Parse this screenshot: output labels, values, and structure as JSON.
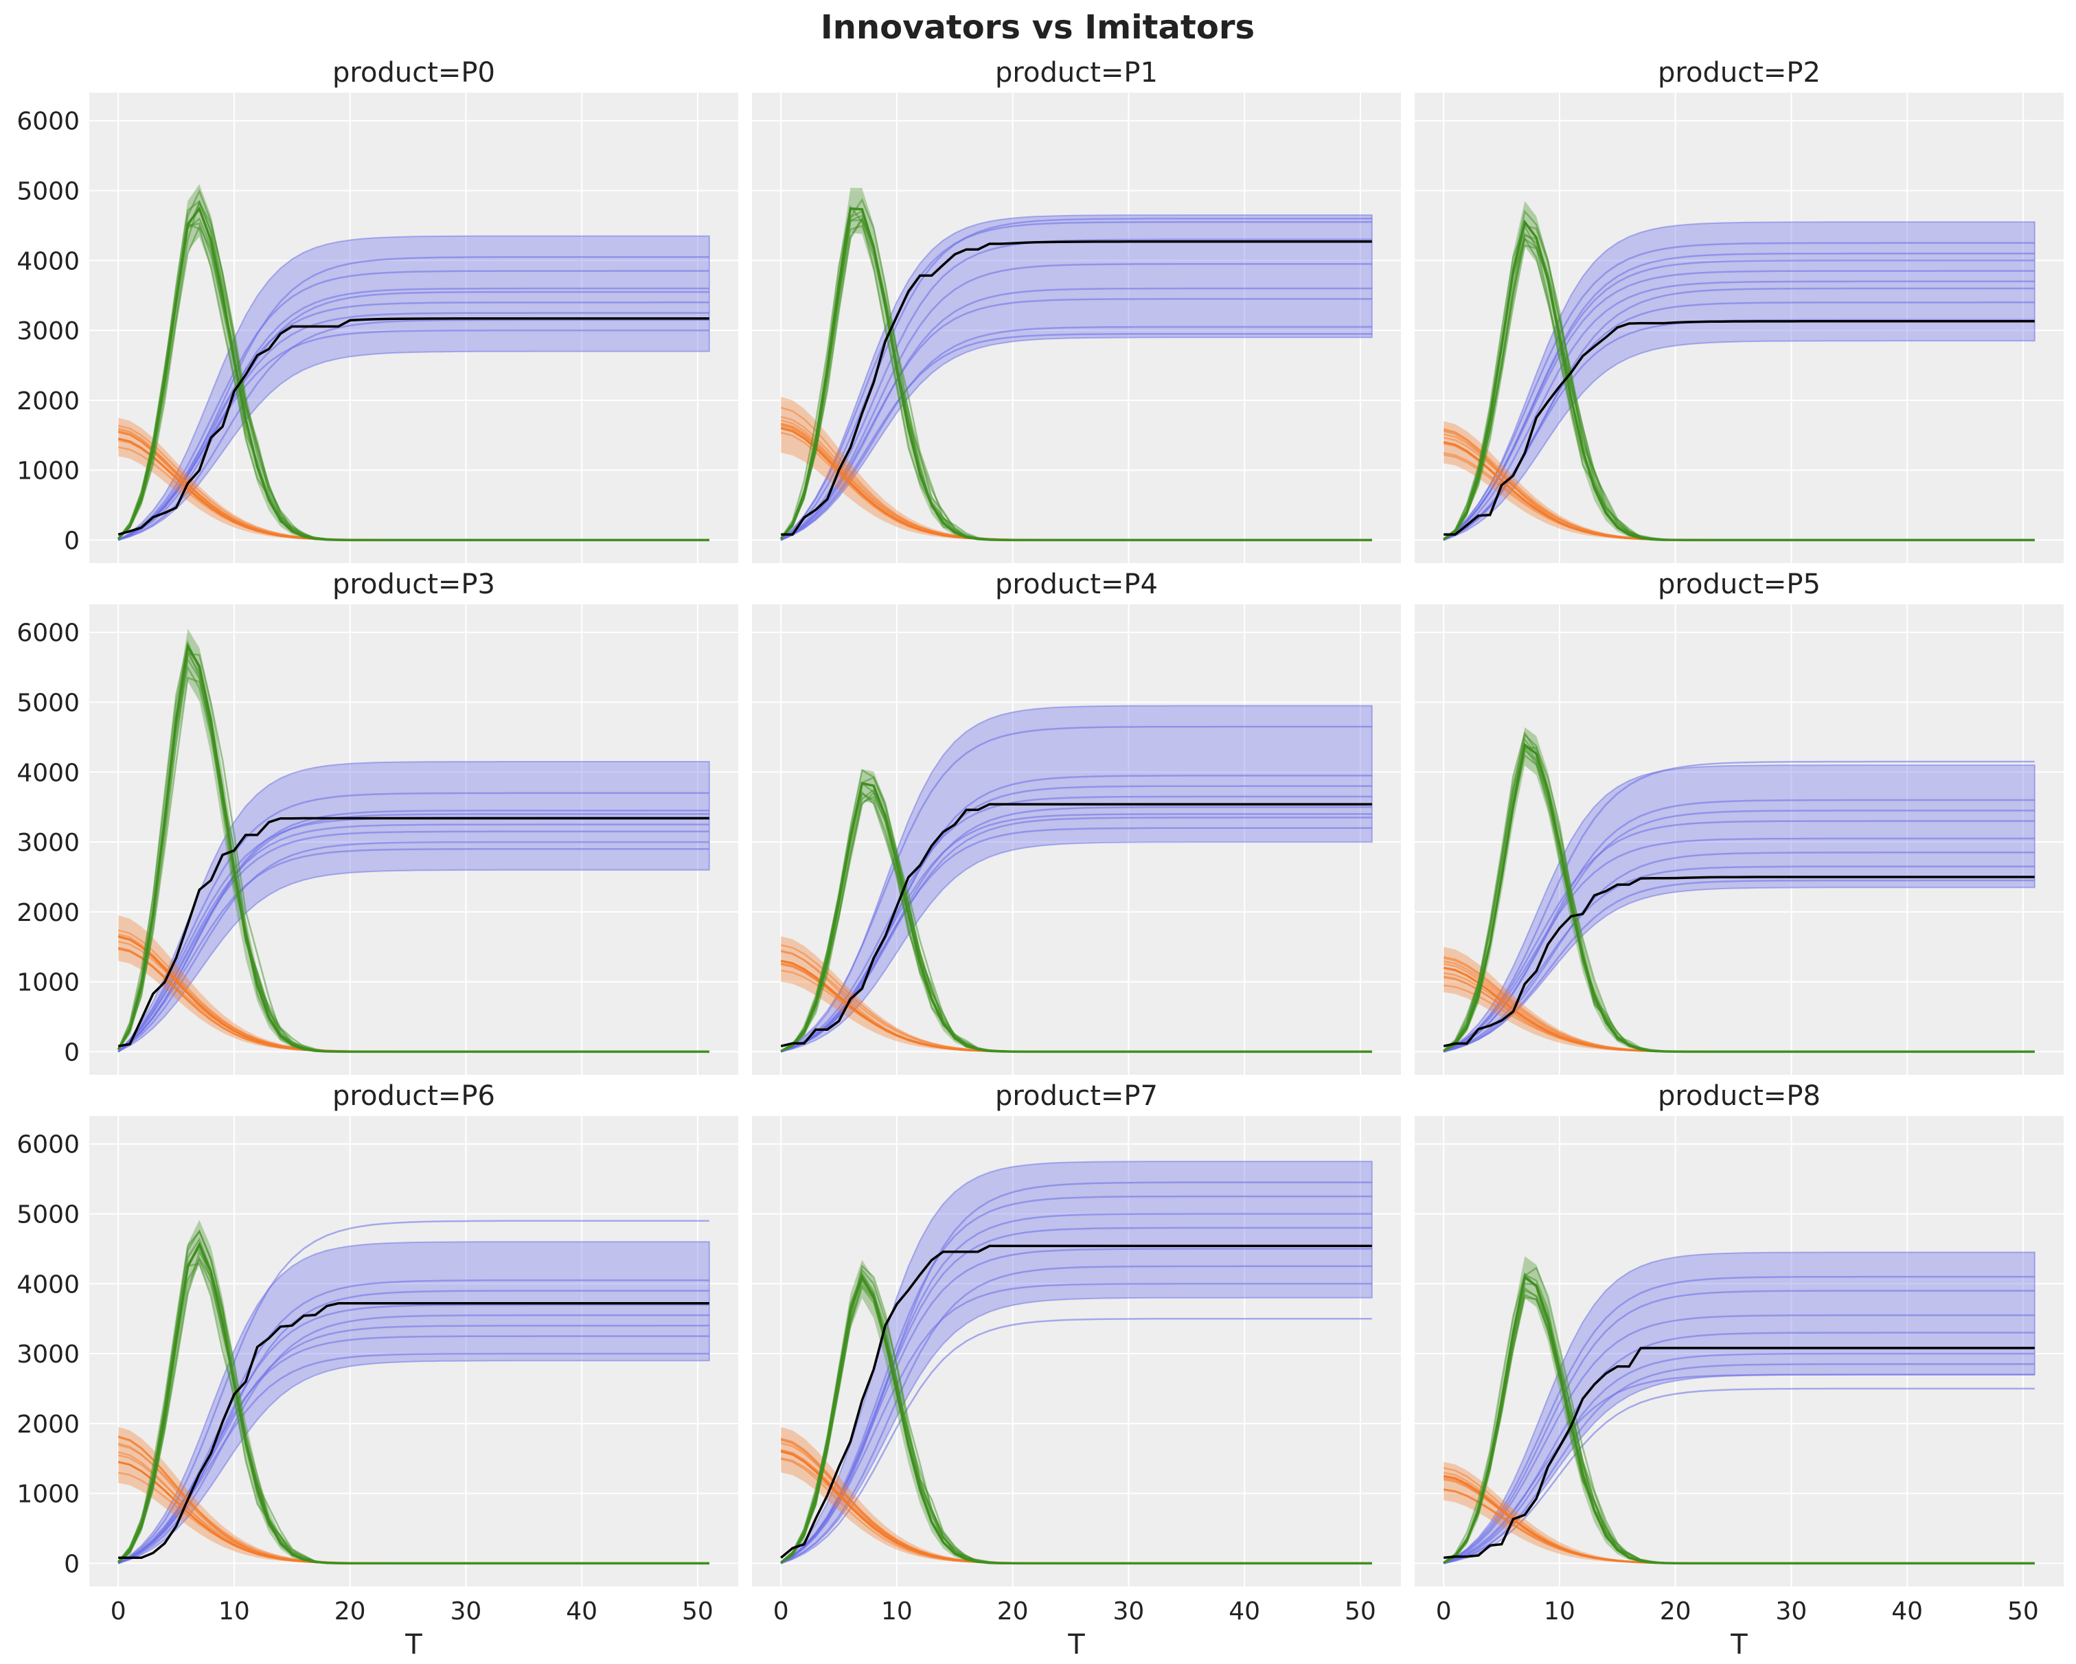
{
  "title": "Innovators vs Imitators",
  "colors": {
    "background": "#eeeeee",
    "grid": "#ffffff",
    "adopters": "#6a6ee8",
    "innovators": "#f47b2a",
    "imitators": "#3f8f1f",
    "observed": "#000000"
  },
  "chart_data": {
    "type": "line",
    "layout": "3x3 grid",
    "xlabel": "T",
    "xlim": [
      0,
      51
    ],
    "ylim": [
      0,
      6300
    ],
    "xticks": [
      0,
      10,
      20,
      30,
      40,
      50
    ],
    "yticks": [
      0,
      1000,
      2000,
      3000,
      4000,
      5000,
      6000
    ],
    "grid": true,
    "panels": [
      {
        "title": "product=P0",
        "observed_plateau": 3170,
        "observed_t50": 8.5,
        "adopters_hdi_plateau": [
          2700,
          4350
        ],
        "adopters_sample_plateaus": [
          3000,
          3150,
          3250,
          3400,
          3550,
          3600,
          3850,
          4050
        ],
        "adopters_t50": 8.5,
        "imitators_peak": 4800,
        "imitators_peak_hdi": [
          4400,
          5150
        ],
        "imitators_peak_t": 6.5,
        "innovators_start": 1450,
        "innovators_start_hdi": [
          1200,
          1750
        ]
      },
      {
        "title": "product=P1",
        "observed_plateau": 4270,
        "observed_t50": 7.5,
        "adopters_hdi_plateau": [
          2900,
          4650
        ],
        "adopters_sample_plateaus": [
          2950,
          3050,
          3450,
          3600,
          3950,
          4300,
          4550,
          4600
        ],
        "adopters_t50": 7.5,
        "imitators_peak": 4850,
        "imitators_peak_hdi": [
          4500,
          5150
        ],
        "imitators_peak_t": 6.3,
        "innovators_start": 1600,
        "innovators_start_hdi": [
          1250,
          2050
        ]
      },
      {
        "title": "product=P2",
        "observed_plateau": 3130,
        "observed_t50": 7.5,
        "adopters_hdi_plateau": [
          2850,
          4550
        ],
        "adopters_sample_plateaus": [
          3150,
          3400,
          3600,
          3700,
          3850,
          4000,
          4100,
          4250
        ],
        "adopters_t50": 8.0,
        "imitators_peak": 4550,
        "imitators_peak_hdi": [
          4200,
          4850
        ],
        "imitators_peak_t": 7.0,
        "innovators_start": 1400,
        "innovators_start_hdi": [
          1100,
          1700
        ]
      },
      {
        "title": "product=P3",
        "observed_plateau": 3340,
        "observed_t50": 5.0,
        "adopters_hdi_plateau": [
          2600,
          4150
        ],
        "adopters_sample_plateaus": [
          2900,
          3000,
          3150,
          3250,
          3350,
          3400,
          3450,
          3700
        ],
        "adopters_t50": 6.5,
        "imitators_peak": 5800,
        "imitators_peak_hdi": [
          5300,
          6050
        ],
        "imitators_peak_t": 6.0,
        "innovators_start": 1650,
        "innovators_start_hdi": [
          1300,
          1950
        ]
      },
      {
        "title": "product=P4",
        "observed_plateau": 3540,
        "observed_t50": 9.0,
        "adopters_hdi_plateau": [
          3000,
          4950
        ],
        "adopters_sample_plateaus": [
          3200,
          3350,
          3500,
          3650,
          3800,
          3950,
          4650,
          3400
        ],
        "adopters_t50": 9.5,
        "imitators_peak": 3900,
        "imitators_peak_hdi": [
          3650,
          4100
        ],
        "imitators_peak_t": 7.3,
        "innovators_start": 1300,
        "innovators_start_hdi": [
          1000,
          1650
        ]
      },
      {
        "title": "product=P5",
        "observed_plateau": 2500,
        "observed_t50": 8.0,
        "adopters_hdi_plateau": [
          2350,
          4100
        ],
        "adopters_sample_plateaus": [
          2450,
          2650,
          2850,
          3050,
          3300,
          3450,
          3600,
          4150
        ],
        "adopters_t50": 8.5,
        "imitators_peak": 4400,
        "imitators_peak_hdi": [
          4100,
          4650
        ],
        "imitators_peak_t": 7.2,
        "innovators_start": 1200,
        "innovators_start_hdi": [
          850,
          1500
        ]
      },
      {
        "title": "product=P6",
        "observed_plateau": 3720,
        "observed_t50": 8.5,
        "adopters_hdi_plateau": [
          2900,
          4600
        ],
        "adopters_sample_plateaus": [
          3000,
          3250,
          3400,
          3550,
          3700,
          3900,
          4050,
          4900
        ],
        "adopters_t50": 8.5,
        "imitators_peak": 4600,
        "imitators_peak_hdi": [
          4300,
          4950
        ],
        "imitators_peak_t": 6.6,
        "innovators_start": 1450,
        "innovators_start_hdi": [
          1150,
          1950
        ]
      },
      {
        "title": "product=P7",
        "observed_plateau": 4540,
        "observed_t50": 6.5,
        "adopters_hdi_plateau": [
          3800,
          5750
        ],
        "adopters_sample_plateaus": [
          3500,
          4000,
          4250,
          4500,
          4800,
          5000,
          5250,
          5450
        ],
        "adopters_t50": 8.5,
        "imitators_peak": 4100,
        "imitators_peak_hdi": [
          3800,
          4350
        ],
        "imitators_peak_t": 6.8,
        "innovators_start": 1600,
        "innovators_start_hdi": [
          1300,
          1950
        ]
      },
      {
        "title": "product=P8",
        "observed_plateau": 3080,
        "observed_t50": 9.5,
        "adopters_hdi_plateau": [
          2700,
          4450
        ],
        "adopters_sample_plateaus": [
          2500,
          2700,
          2850,
          3000,
          3300,
          3550,
          3900,
          4100
        ],
        "adopters_t50": 9.0,
        "imitators_peak": 4100,
        "imitators_peak_hdi": [
          3800,
          4400
        ],
        "imitators_peak_t": 7.2,
        "innovators_start": 1250,
        "innovators_start_hdi": [
          900,
          1450
        ]
      }
    ]
  }
}
